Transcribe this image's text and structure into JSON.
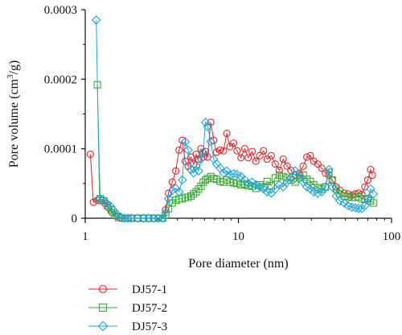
{
  "chart_data": {
    "type": "line",
    "title": "",
    "xlabel": "Pore diameter (nm)",
    "ylabel_parts": {
      "before": "Pore volume (cm",
      "sup": "3",
      "after": "/g)"
    },
    "x_scale": "log",
    "xlim": [
      1,
      100
    ],
    "ylim": [
      0,
      0.0003
    ],
    "x_ticks": [
      1,
      10,
      100
    ],
    "x_tick_labels": [
      "1",
      "10",
      "100"
    ],
    "y_ticks": [
      0,
      0.0001,
      0.0002,
      0.0003
    ],
    "y_tick_labels": [
      "0",
      "0.0001",
      "0.0002",
      "0.0003"
    ],
    "legend_position": "bottom-left",
    "series": [
      {
        "name": "DJ57-1",
        "color": "#e3262b",
        "marker": "circle",
        "points": [
          [
            1.08,
            9.2e-05
          ],
          [
            1.13,
            2.3e-05
          ],
          [
            1.2,
            2.6e-05
          ],
          [
            1.28,
            2.5e-05
          ],
          [
            1.35,
            2.1e-05
          ],
          [
            1.42,
            1.5e-05
          ],
          [
            1.5,
            8e-06
          ],
          [
            1.6,
            3e-06
          ],
          [
            1.7,
            0.0
          ],
          [
            1.8,
            0.0
          ],
          [
            1.9,
            0.0
          ],
          [
            2.0,
            0.0
          ],
          [
            2.2,
            0.0
          ],
          [
            2.4,
            0.0
          ],
          [
            2.6,
            0.0
          ],
          [
            2.8,
            0.0
          ],
          [
            3.0,
            0.0
          ],
          [
            3.2,
            0.0
          ],
          [
            3.35,
            1.2e-05
          ],
          [
            3.5,
            3.6e-05
          ],
          [
            3.7,
            5.2e-05
          ],
          [
            3.9,
            6.8e-05
          ],
          [
            4.1,
            9.8e-05
          ],
          [
            4.3,
            0.000112
          ],
          [
            4.5,
            8.2e-05
          ],
          [
            4.7,
            7.5e-05
          ],
          [
            4.9,
            8.8e-05
          ],
          [
            5.1,
            7.8e-05
          ],
          [
            5.3,
            9.2e-05
          ],
          [
            5.5,
            8.5e-05
          ],
          [
            5.7,
            0.0001
          ],
          [
            5.9,
            8.8e-05
          ],
          [
            6.1,
            9.6e-05
          ],
          [
            6.3,
            8.8e-05
          ],
          [
            6.6,
            0.000138
          ],
          [
            6.9,
            0.000112
          ],
          [
            7.2,
            9.5e-05
          ],
          [
            7.6,
            9.8e-05
          ],
          [
            8.0,
            9.7e-05
          ],
          [
            8.4,
            0.000122
          ],
          [
            8.8,
            0.000103
          ],
          [
            9.3,
            0.000108
          ],
          [
            9.8,
            9.7e-05
          ],
          [
            10.4,
            8.7e-05
          ],
          [
            11.0,
            0.0001
          ],
          [
            11.6,
            8.7e-05
          ],
          [
            12.3,
            9.6e-05
          ],
          [
            13.0,
            8.2e-05
          ],
          [
            13.8,
            9e-05
          ],
          [
            14.6,
            9.7e-05
          ],
          [
            15.4,
            8.5e-05
          ],
          [
            16.4,
            9e-05
          ],
          [
            17.4,
            7.8e-05
          ],
          [
            18.5,
            6.9e-05
          ],
          [
            19.6,
            8.5e-05
          ],
          [
            20.8,
            7.5e-05
          ],
          [
            22.0,
            6.9e-05
          ],
          [
            23.5,
            6.2e-05
          ],
          [
            25.0,
            6.5e-05
          ],
          [
            26.5,
            7.5e-05
          ],
          [
            28.0,
            8.8e-05
          ],
          [
            29.5,
            9e-05
          ],
          [
            31.0,
            8.2e-05
          ],
          [
            33.0,
            7.8e-05
          ],
          [
            35.0,
            7.2e-05
          ],
          [
            37.0,
            6.5e-05
          ],
          [
            39.0,
            6.2e-05
          ],
          [
            41.0,
            5.5e-05
          ],
          [
            43.5,
            4.5e-05
          ],
          [
            46.0,
            4e-05
          ],
          [
            49.0,
            3.6e-05
          ],
          [
            52.0,
            3.5e-05
          ],
          [
            55.0,
            3.3e-05
          ],
          [
            58.0,
            3.5e-05
          ],
          [
            61.0,
            3.6e-05
          ],
          [
            64.0,
            3.4e-05
          ],
          [
            67.0,
            4.5e-05
          ],
          [
            70.0,
            5.5e-05
          ],
          [
            73.0,
            7e-05
          ],
          [
            75.0,
            6.2e-05
          ]
        ]
      },
      {
        "name": "DJ57-2",
        "color": "#3aa935",
        "marker": "square",
        "points": [
          [
            1.2,
            0.000192
          ],
          [
            1.25,
            2.8e-05
          ],
          [
            1.32,
            2.5e-05
          ],
          [
            1.4,
            1.8e-05
          ],
          [
            1.48,
            1.2e-05
          ],
          [
            1.56,
            5e-06
          ],
          [
            1.65,
            1e-06
          ],
          [
            1.75,
            0.0
          ],
          [
            1.9,
            0.0
          ],
          [
            2.0,
            0.0
          ],
          [
            2.2,
            0.0
          ],
          [
            2.4,
            0.0
          ],
          [
            2.6,
            0.0
          ],
          [
            2.8,
            0.0
          ],
          [
            3.0,
            0.0
          ],
          [
            3.2,
            0.0
          ],
          [
            3.35,
            5e-06
          ],
          [
            3.5,
            1.4e-05
          ],
          [
            3.7,
            2.2e-05
          ],
          [
            3.9,
            2.6e-05
          ],
          [
            4.1,
            2.8e-05
          ],
          [
            4.3,
            2.8e-05
          ],
          [
            4.5,
            3e-05
          ],
          [
            4.7,
            3e-05
          ],
          [
            4.9,
            3.2e-05
          ],
          [
            5.1,
            3.5e-05
          ],
          [
            5.3,
            3.8e-05
          ],
          [
            5.5,
            4.2e-05
          ],
          [
            5.7,
            4.6e-05
          ],
          [
            5.9,
            5.2e-05
          ],
          [
            6.1,
            5.5e-05
          ],
          [
            6.3,
            5.7e-05
          ],
          [
            6.6,
            6e-05
          ],
          [
            6.9,
            5.7e-05
          ],
          [
            7.2,
            5.6e-05
          ],
          [
            7.6,
            5.3e-05
          ],
          [
            8.0,
            5.2e-05
          ],
          [
            8.4,
            5.5e-05
          ],
          [
            8.8,
            5.2e-05
          ],
          [
            9.3,
            5.1e-05
          ],
          [
            9.8,
            5e-05
          ],
          [
            10.4,
            4.8e-05
          ],
          [
            11.0,
            4.9e-05
          ],
          [
            11.6,
            4.7e-05
          ],
          [
            12.3,
            4.6e-05
          ],
          [
            13.0,
            4.3e-05
          ],
          [
            13.8,
            4.8e-05
          ],
          [
            14.6,
            4.5e-05
          ],
          [
            15.4,
            5.3e-05
          ],
          [
            16.4,
            4.7e-05
          ],
          [
            17.4,
            5.8e-05
          ],
          [
            18.5,
            6.2e-05
          ],
          [
            19.6,
            6e-05
          ],
          [
            20.8,
            5.8e-05
          ],
          [
            22.0,
            5.5e-05
          ],
          [
            23.5,
            5.2e-05
          ],
          [
            25.0,
            5.8e-05
          ],
          [
            26.5,
            6.2e-05
          ],
          [
            28.0,
            5.6e-05
          ],
          [
            29.5,
            5.3e-05
          ],
          [
            31.0,
            4.8e-05
          ],
          [
            33.0,
            4.4e-05
          ],
          [
            35.0,
            4.2e-05
          ],
          [
            37.0,
            4.5e-05
          ],
          [
            39.0,
            6.6e-05
          ],
          [
            41.0,
            5.5e-05
          ],
          [
            43.5,
            4.2e-05
          ],
          [
            46.0,
            3.5e-05
          ],
          [
            49.0,
            3.2e-05
          ],
          [
            52.0,
            3.1e-05
          ],
          [
            55.0,
            3e-05
          ],
          [
            58.0,
            3e-05
          ],
          [
            61.0,
            3.1e-05
          ],
          [
            64.0,
            2.8e-05
          ],
          [
            67.0,
            2.7e-05
          ],
          [
            70.0,
            2.8e-05
          ],
          [
            73.0,
            2.5e-05
          ],
          [
            76.0,
            2.2e-05
          ]
        ]
      },
      {
        "name": "DJ57-3",
        "color": "#1ea6dc",
        "marker": "diamond",
        "points": [
          [
            1.18,
            0.000285
          ],
          [
            1.24,
            2.8e-05
          ],
          [
            1.3,
            2.7e-05
          ],
          [
            1.38,
            2.2e-05
          ],
          [
            1.45,
            1.8e-05
          ],
          [
            1.52,
            1.2e-05
          ],
          [
            1.6,
            6e-06
          ],
          [
            1.7,
            2e-06
          ],
          [
            1.8,
            0.0
          ],
          [
            1.9,
            0.0
          ],
          [
            2.0,
            0.0
          ],
          [
            2.2,
            0.0
          ],
          [
            2.4,
            0.0
          ],
          [
            2.6,
            0.0
          ],
          [
            2.8,
            0.0
          ],
          [
            3.0,
            0.0
          ],
          [
            3.2,
            0.0
          ],
          [
            3.35,
            8e-06
          ],
          [
            3.5,
            2.8e-05
          ],
          [
            3.7,
            4e-05
          ],
          [
            3.9,
            4.3e-05
          ],
          [
            4.1,
            3.8e-05
          ],
          [
            4.3,
            5.5e-05
          ],
          [
            4.5,
            0.00011
          ],
          [
            4.7,
            9.8e-05
          ],
          [
            4.9,
            7e-05
          ],
          [
            5.1,
            6.5e-05
          ],
          [
            5.3,
            7.5e-05
          ],
          [
            5.5,
            6.8e-05
          ],
          [
            5.7,
            8.5e-05
          ],
          [
            5.9,
            9.5e-05
          ],
          [
            6.1,
            0.000138
          ],
          [
            6.3,
            0.000132
          ],
          [
            6.6,
            0.00011
          ],
          [
            6.9,
            8.5e-05
          ],
          [
            7.2,
            7.8e-05
          ],
          [
            7.6,
            7.2e-05
          ],
          [
            8.0,
            6.5e-05
          ],
          [
            8.4,
            6.8e-05
          ],
          [
            8.8,
            6.2e-05
          ],
          [
            9.3,
            6.4e-05
          ],
          [
            9.8,
            6.3e-05
          ],
          [
            10.4,
            6e-05
          ],
          [
            11.0,
            5.5e-05
          ],
          [
            11.6,
            5e-05
          ],
          [
            12.3,
            5.2e-05
          ],
          [
            13.0,
            4.8e-05
          ],
          [
            13.8,
            4.5e-05
          ],
          [
            14.6,
            4.2e-05
          ],
          [
            15.4,
            3.8e-05
          ],
          [
            16.4,
            3.6e-05
          ],
          [
            17.4,
            4.2e-05
          ],
          [
            18.5,
            4.8e-05
          ],
          [
            19.6,
            4.5e-05
          ],
          [
            20.8,
            5.2e-05
          ],
          [
            22.0,
            5.8e-05
          ],
          [
            23.5,
            6.8e-05
          ],
          [
            25.0,
            6.2e-05
          ],
          [
            26.5,
            5.2e-05
          ],
          [
            28.0,
            4.5e-05
          ],
          [
            29.5,
            4.2e-05
          ],
          [
            31.0,
            3.8e-05
          ],
          [
            33.0,
            3.6e-05
          ],
          [
            35.0,
            3.8e-05
          ],
          [
            37.0,
            4.5e-05
          ],
          [
            39.0,
            7e-05
          ],
          [
            41.0,
            4.5e-05
          ],
          [
            43.5,
            3.2e-05
          ],
          [
            46.0,
            2.5e-05
          ],
          [
            49.0,
            2.2e-05
          ],
          [
            52.0,
            1.8e-05
          ],
          [
            55.0,
            1.6e-05
          ],
          [
            58.0,
            1.5e-05
          ],
          [
            61.0,
            1.4e-05
          ],
          [
            64.0,
            1.4e-05
          ],
          [
            67.0,
            1.8e-05
          ],
          [
            70.0,
            2.8e-05
          ],
          [
            73.0,
            4.2e-05
          ],
          [
            76.0,
            3.5e-05
          ]
        ]
      }
    ]
  }
}
